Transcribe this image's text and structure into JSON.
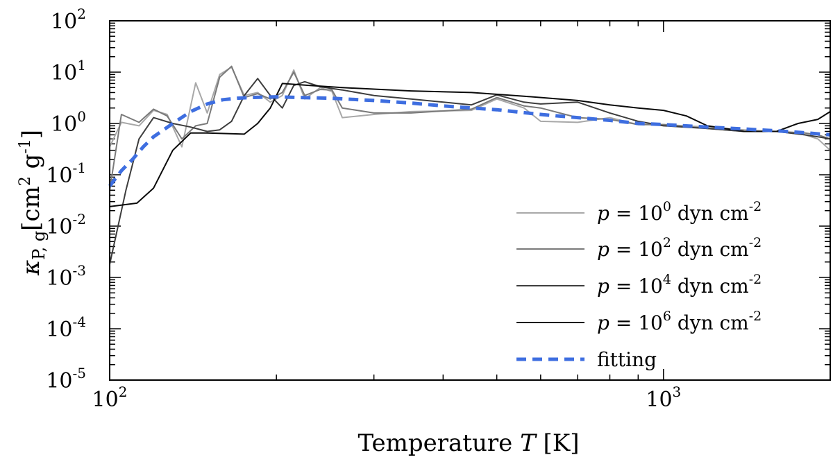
{
  "chart_data": {
    "type": "line",
    "xscale": "log",
    "yscale": "log",
    "xlim": [
      100,
      2000
    ],
    "ylim": [
      1e-05,
      100
    ],
    "xlabel": {
      "prefix": "Temperature ",
      "var": "T",
      "suffix": " [K]"
    },
    "ylabel": {
      "kappa": "κ",
      "sub": "P, g",
      "unit": "[cm",
      "sup1": "2",
      "mid": " g",
      "sup2": "-1",
      "end": "]"
    },
    "x_ticks": [
      {
        "base": "10",
        "exp": "2",
        "value": 100
      },
      {
        "base": "10",
        "exp": "3",
        "value": 1000
      }
    ],
    "y_ticks": [
      {
        "base": "10",
        "exp": "2",
        "value": 100
      },
      {
        "base": "10",
        "exp": "1",
        "value": 10
      },
      {
        "base": "10",
        "exp": "0",
        "value": 1
      },
      {
        "base": "10",
        "exp": "-1",
        "value": 0.1
      },
      {
        "base": "10",
        "exp": "-2",
        "value": 0.01
      },
      {
        "base": "10",
        "exp": "-3",
        "value": 0.001
      },
      {
        "base": "10",
        "exp": "-4",
        "value": 0.0001
      },
      {
        "base": "10",
        "exp": "-5",
        "value": 1e-05
      }
    ],
    "series": [
      {
        "name": "p = 10^0 dyn cm^-2",
        "label": {
          "var": "p",
          "eq": " = 10",
          "exp": "0",
          "unit": " dyn cm",
          "uexp": "-2"
        },
        "color": "#a8a8a8",
        "width": 2,
        "dash": "",
        "points": [
          [
            100,
            0.35
          ],
          [
            105,
            1.05
          ],
          [
            113,
            0.9
          ],
          [
            120,
            1.8
          ],
          [
            127,
            1.5
          ],
          [
            135,
            0.35
          ],
          [
            143,
            6.2
          ],
          [
            150,
            1.6
          ],
          [
            158,
            9.0
          ],
          [
            166,
            12.5
          ],
          [
            175,
            3.5
          ],
          [
            185,
            4.0
          ],
          [
            195,
            2.6
          ],
          [
            205,
            3.5
          ],
          [
            215,
            11.0
          ],
          [
            225,
            3.0
          ],
          [
            240,
            5.0
          ],
          [
            252,
            4.2
          ],
          [
            263,
            1.3
          ],
          [
            300,
            1.5
          ],
          [
            350,
            1.7
          ],
          [
            450,
            1.8
          ],
          [
            500,
            3.0
          ],
          [
            560,
            2.0
          ],
          [
            600,
            1.1
          ],
          [
            700,
            1.05
          ],
          [
            800,
            1.3
          ],
          [
            900,
            0.95
          ],
          [
            1000,
            0.95
          ],
          [
            1200,
            0.85
          ],
          [
            1400,
            0.75
          ],
          [
            1600,
            0.7
          ],
          [
            1800,
            0.6
          ],
          [
            1900,
            0.5
          ],
          [
            2000,
            0.3
          ]
        ]
      },
      {
        "name": "p = 10^2 dyn cm^-2",
        "label": {
          "var": "p",
          "eq": " = 10",
          "exp": "2",
          "unit": " dyn cm",
          "uexp": "-2"
        },
        "color": "#7a7a7a",
        "width": 2,
        "dash": "",
        "points": [
          [
            100,
            0.05
          ],
          [
            105,
            1.5
          ],
          [
            113,
            1.05
          ],
          [
            120,
            1.9
          ],
          [
            127,
            1.4
          ],
          [
            135,
            0.5
          ],
          [
            143,
            0.9
          ],
          [
            150,
            1.0
          ],
          [
            158,
            8.0
          ],
          [
            166,
            13.0
          ],
          [
            175,
            3.2
          ],
          [
            185,
            3.8
          ],
          [
            195,
            3.0
          ],
          [
            205,
            4.0
          ],
          [
            215,
            10.0
          ],
          [
            225,
            3.5
          ],
          [
            240,
            4.6
          ],
          [
            252,
            4.5
          ],
          [
            263,
            2.0
          ],
          [
            300,
            1.6
          ],
          [
            350,
            1.6
          ],
          [
            450,
            1.9
          ],
          [
            500,
            3.2
          ],
          [
            560,
            2.2
          ],
          [
            600,
            2.0
          ],
          [
            700,
            1.3
          ],
          [
            800,
            1.2
          ],
          [
            900,
            0.95
          ],
          [
            1000,
            0.95
          ],
          [
            1200,
            0.8
          ],
          [
            1400,
            0.7
          ],
          [
            1600,
            0.7
          ],
          [
            1800,
            0.65
          ],
          [
            1900,
            0.6
          ],
          [
            2000,
            0.5
          ]
        ]
      },
      {
        "name": "p = 10^4 dyn cm^-2",
        "label": {
          "var": "p",
          "eq": " = 10",
          "exp": "4",
          "unit": " dyn cm",
          "uexp": "-2"
        },
        "color": "#3d3d3d",
        "width": 2,
        "dash": "",
        "points": [
          [
            100,
            0.0018
          ],
          [
            107,
            0.05
          ],
          [
            113,
            0.5
          ],
          [
            120,
            1.3
          ],
          [
            130,
            1.0
          ],
          [
            140,
            0.85
          ],
          [
            150,
            0.7
          ],
          [
            158,
            0.75
          ],
          [
            166,
            1.1
          ],
          [
            175,
            3.5
          ],
          [
            185,
            7.5
          ],
          [
            195,
            3.5
          ],
          [
            205,
            2.0
          ],
          [
            215,
            5.5
          ],
          [
            225,
            6.5
          ],
          [
            240,
            5.2
          ],
          [
            252,
            4.8
          ],
          [
            263,
            4.5
          ],
          [
            300,
            3.5
          ],
          [
            350,
            3.0
          ],
          [
            450,
            2.3
          ],
          [
            500,
            3.6
          ],
          [
            560,
            2.6
          ],
          [
            600,
            2.4
          ],
          [
            700,
            2.6
          ],
          [
            800,
            1.6
          ],
          [
            900,
            1.1
          ],
          [
            1000,
            0.9
          ],
          [
            1200,
            0.8
          ],
          [
            1400,
            0.7
          ],
          [
            1600,
            0.7
          ],
          [
            1800,
            0.6
          ],
          [
            1900,
            0.55
          ],
          [
            2000,
            0.5
          ]
        ]
      },
      {
        "name": "p = 10^6 dyn cm^-2",
        "label": {
          "var": "p",
          "eq": " = 10",
          "exp": "6",
          "unit": " dyn cm",
          "uexp": "-2"
        },
        "color": "#0a0a0a",
        "width": 2,
        "dash": "",
        "points": [
          [
            100,
            0.024
          ],
          [
            112,
            0.028
          ],
          [
            120,
            0.055
          ],
          [
            130,
            0.3
          ],
          [
            140,
            0.65
          ],
          [
            150,
            0.65
          ],
          [
            175,
            0.62
          ],
          [
            185,
            1.0
          ],
          [
            195,
            2.0
          ],
          [
            205,
            6.0
          ],
          [
            230,
            5.5
          ],
          [
            263,
            5.0
          ],
          [
            350,
            4.3
          ],
          [
            450,
            4.0
          ],
          [
            560,
            3.4
          ],
          [
            700,
            2.8
          ],
          [
            800,
            2.3
          ],
          [
            900,
            2.0
          ],
          [
            1000,
            1.8
          ],
          [
            1100,
            1.4
          ],
          [
            1200,
            0.9
          ],
          [
            1400,
            0.7
          ],
          [
            1600,
            0.7
          ],
          [
            1750,
            1.0
          ],
          [
            1900,
            1.2
          ],
          [
            2000,
            1.7
          ]
        ]
      },
      {
        "name": "fitting",
        "label": {
          "text": "fitting"
        },
        "color": "#3e6ee0",
        "width": 5,
        "dash": "14,9",
        "points": [
          [
            100,
            0.06
          ],
          [
            105,
            0.12
          ],
          [
            110,
            0.2
          ],
          [
            115,
            0.35
          ],
          [
            120,
            0.55
          ],
          [
            130,
            1.0
          ],
          [
            140,
            1.7
          ],
          [
            150,
            2.4
          ],
          [
            160,
            2.9
          ],
          [
            170,
            3.1
          ],
          [
            180,
            3.2
          ],
          [
            200,
            3.3
          ],
          [
            220,
            3.2
          ],
          [
            250,
            3.1
          ],
          [
            300,
            2.8
          ],
          [
            350,
            2.5
          ],
          [
            400,
            2.2
          ],
          [
            450,
            2.0
          ],
          [
            500,
            1.85
          ],
          [
            600,
            1.5
          ],
          [
            700,
            1.3
          ],
          [
            800,
            1.15
          ],
          [
            900,
            1.0
          ],
          [
            1000,
            0.95
          ],
          [
            1200,
            0.85
          ],
          [
            1400,
            0.78
          ],
          [
            1600,
            0.72
          ],
          [
            1800,
            0.66
          ],
          [
            2000,
            0.6
          ]
        ]
      }
    ]
  }
}
